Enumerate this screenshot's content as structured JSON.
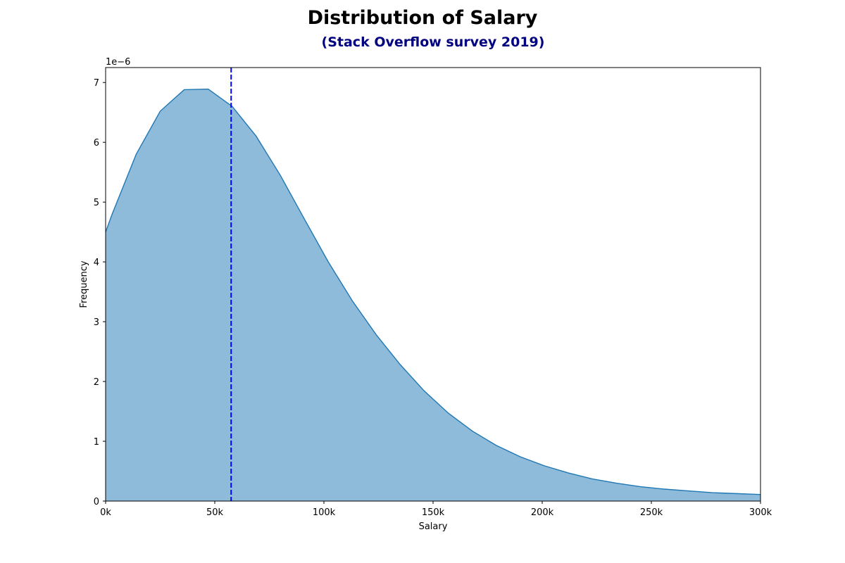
{
  "chart_data": {
    "type": "area",
    "title": "Distribution of Salary",
    "subtitle": "(Stack Overflow survey 2019)",
    "xlabel": "Salary",
    "ylabel": "Frequency",
    "y_offset_label": "1e−6",
    "xlim": [
      0,
      300000
    ],
    "ylim": [
      0,
      7.25e-06
    ],
    "x_ticks": [
      {
        "value": 0,
        "label": "0k"
      },
      {
        "value": 50000,
        "label": "50k"
      },
      {
        "value": 100000,
        "label": "100k"
      },
      {
        "value": 150000,
        "label": "150k"
      },
      {
        "value": 200000,
        "label": "200k"
      },
      {
        "value": 250000,
        "label": "250k"
      },
      {
        "value": 300000,
        "label": "300k"
      }
    ],
    "y_ticks": [
      {
        "value": 0,
        "label": "0"
      },
      {
        "value": 1e-06,
        "label": "1"
      },
      {
        "value": 2e-06,
        "label": "2"
      },
      {
        "value": 3e-06,
        "label": "3"
      },
      {
        "value": 4e-06,
        "label": "4"
      },
      {
        "value": 5e-06,
        "label": "5"
      },
      {
        "value": 6e-06,
        "label": "6"
      },
      {
        "value": 7e-06,
        "label": "7"
      }
    ],
    "series": [
      {
        "x": [
          0,
          3000,
          14000,
          25000,
          36000,
          47000,
          58000,
          69000,
          80000,
          91000,
          102000,
          113000,
          124000,
          135000,
          146000,
          157000,
          168000,
          179000,
          190000,
          201000,
          212000,
          223000,
          234000,
          245000,
          256000,
          267000,
          278000,
          289000,
          300000
        ],
        "y": [
          4.5e-06,
          4.8e-06,
          5.8e-06,
          6.52e-06,
          6.88e-06,
          6.89e-06,
          6.6e-06,
          6.1e-06,
          5.45e-06,
          4.72e-06,
          4e-06,
          3.35e-06,
          2.78e-06,
          2.28e-06,
          1.84e-06,
          1.47e-06,
          1.17e-06,
          9.3e-07,
          7.4e-07,
          5.9e-07,
          4.7e-07,
          3.7e-07,
          3e-07,
          2.4e-07,
          2e-07,
          1.7e-07,
          1.4e-07,
          1.25e-07,
          1.1e-07
        ]
      }
    ],
    "reference_line": {
      "x": 57500,
      "style": "dashed"
    },
    "grid": false,
    "colors": {
      "fill": "#8fbbda",
      "line": "#1f77b4",
      "reference_line": "#0000ff",
      "title": "#000000",
      "subtitle": "#000080"
    }
  }
}
